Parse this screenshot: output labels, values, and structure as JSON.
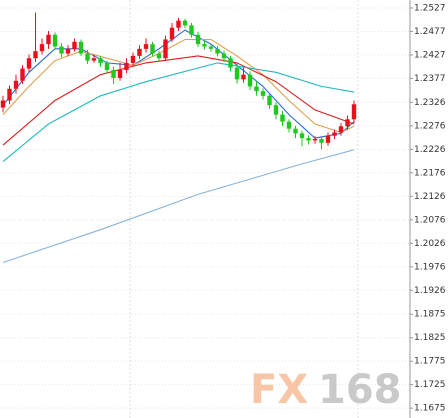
{
  "chart_data": {
    "type": "candlestick",
    "up_color": "#e8101c",
    "down_color": "#1ec81e",
    "candles": {
      "open": [
        1.2315,
        1.233,
        1.2355,
        1.2372,
        1.2398,
        1.242,
        1.2435,
        1.245,
        1.247,
        1.2445,
        1.243,
        1.244,
        1.2455,
        1.243,
        1.2415,
        1.242,
        1.241,
        1.2395,
        1.2378,
        1.2395,
        1.241,
        1.2425,
        1.244,
        1.245,
        1.243,
        1.242,
        1.246,
        1.2485,
        1.25,
        1.249,
        1.247,
        1.245,
        1.2445,
        1.244,
        1.243,
        1.242,
        1.24,
        1.2375,
        1.2385,
        1.236,
        1.235,
        1.234,
        1.232,
        1.23,
        1.2285,
        1.227,
        1.226,
        1.225,
        1.2245,
        1.2248,
        1.224,
        1.2255,
        1.2262,
        1.2275,
        1.229
      ],
      "high": [
        1.234,
        1.2362,
        1.2385,
        1.2405,
        1.2428,
        1.2517,
        1.2462,
        1.2478,
        1.2475,
        1.2452,
        1.2448,
        1.2462,
        1.246,
        1.2438,
        1.2428,
        1.2425,
        1.2415,
        1.2402,
        1.241,
        1.242,
        1.2432,
        1.2448,
        1.2462,
        1.2455,
        1.2436,
        1.2468,
        1.2495,
        1.2506,
        1.2504,
        1.2495,
        1.2476,
        1.2458,
        1.245,
        1.2446,
        1.2436,
        1.2425,
        1.2408,
        1.24,
        1.2392,
        1.2372,
        1.2356,
        1.2346,
        1.2326,
        1.2308,
        1.229,
        1.2276,
        1.2266,
        1.2256,
        1.2254,
        1.2252,
        1.2262,
        1.2268,
        1.2282,
        1.2298,
        1.233
      ],
      "low": [
        1.2305,
        1.2322,
        1.2345,
        1.2365,
        1.239,
        1.2412,
        1.2428,
        1.244,
        1.2438,
        1.2422,
        1.2425,
        1.2434,
        1.2425,
        1.2408,
        1.241,
        1.2402,
        1.2388,
        1.2365,
        1.2372,
        1.2388,
        1.2404,
        1.2418,
        1.2432,
        1.2424,
        1.2412,
        1.2414,
        1.2455,
        1.2478,
        1.2484,
        1.2464,
        1.2444,
        1.2438,
        1.2434,
        1.2424,
        1.2412,
        1.2392,
        1.2366,
        1.2368,
        1.2352,
        1.234,
        1.2332,
        1.2312,
        1.229,
        1.2276,
        1.2262,
        1.225,
        1.2232,
        1.2236,
        1.2238,
        1.2226,
        1.2234,
        1.2248,
        1.2255,
        1.2268,
        1.2282
      ],
      "close": [
        1.233,
        1.2355,
        1.2372,
        1.2398,
        1.242,
        1.2435,
        1.245,
        1.247,
        1.2445,
        1.243,
        1.244,
        1.2455,
        1.243,
        1.2415,
        1.242,
        1.241,
        1.2395,
        1.2378,
        1.2395,
        1.241,
        1.2425,
        1.244,
        1.245,
        1.243,
        1.242,
        1.246,
        1.2485,
        1.25,
        1.249,
        1.247,
        1.245,
        1.2445,
        1.244,
        1.243,
        1.242,
        1.24,
        1.2375,
        1.2385,
        1.236,
        1.235,
        1.234,
        1.232,
        1.23,
        1.2285,
        1.227,
        1.226,
        1.225,
        1.2245,
        1.2248,
        1.224,
        1.2255,
        1.2262,
        1.2275,
        1.229,
        1.2322
      ]
    },
    "lines": [
      {
        "color": "#2a6bd6",
        "x": [
          0,
          4,
          8,
          12,
          16,
          20,
          24,
          28,
          32,
          36,
          40,
          44,
          48,
          52,
          54
        ],
        "values": [
          1.232,
          1.239,
          1.244,
          1.244,
          1.241,
          1.2405,
          1.244,
          1.248,
          1.245,
          1.2405,
          1.236,
          1.23,
          1.225,
          1.226,
          1.2285
        ]
      },
      {
        "color": "#e0a050",
        "x": [
          0,
          4,
          8,
          12,
          16,
          20,
          24,
          28,
          32,
          36,
          40,
          44,
          48,
          52,
          54
        ],
        "values": [
          1.23,
          1.236,
          1.2415,
          1.2435,
          1.242,
          1.2405,
          1.243,
          1.246,
          1.246,
          1.2425,
          1.2385,
          1.233,
          1.228,
          1.2262,
          1.2275
        ]
      },
      {
        "color": "#d81e1e",
        "x": [
          0,
          8,
          15,
          22,
          30,
          36,
          42,
          48,
          54
        ],
        "values": [
          1.2235,
          1.233,
          1.2385,
          1.241,
          1.2425,
          1.241,
          1.237,
          1.231,
          1.228
        ]
      },
      {
        "color": "#20b8c0",
        "x": [
          0,
          7,
          15,
          22,
          33,
          42,
          49,
          54
        ],
        "values": [
          1.22,
          1.228,
          1.234,
          1.237,
          1.241,
          1.239,
          1.236,
          1.2348
        ]
      },
      {
        "color": "#8ab4d8",
        "x": [
          0,
          15,
          30,
          46,
          54
        ],
        "values": [
          1.1985,
          1.2055,
          1.213,
          1.2195,
          1.2225
        ]
      }
    ],
    "ylim": [
      1.1654,
      1.2544
    ],
    "yticks": [
      1.2527,
      1.2477,
      1.2427,
      1.2377,
      1.2326,
      1.2276,
      1.2226,
      1.2176,
      1.2126,
      1.2076,
      1.2026,
      1.1976,
      1.1926,
      1.1875,
      1.1825,
      1.1775,
      1.1725,
      1.1675
    ],
    "grid": true,
    "watermark": [
      "FX",
      "168"
    ]
  }
}
